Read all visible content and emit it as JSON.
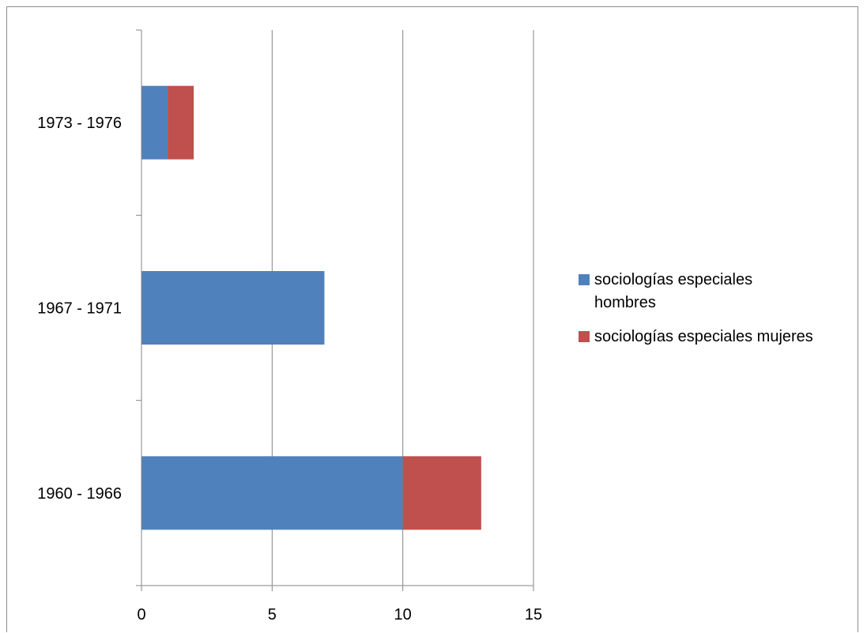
{
  "chart_data": {
    "type": "bar",
    "orientation": "horizontal",
    "stacked": true,
    "categories": [
      "1960 - 1966",
      "1967 - 1971",
      "1973 - 1976"
    ],
    "series": [
      {
        "name": "sociologías especiales hombres",
        "values": [
          10,
          7,
          1
        ],
        "color": "#4F81BD"
      },
      {
        "name": "sociologías especiales mujeres",
        "values": [
          3,
          0,
          1
        ],
        "color": "#C0504D"
      }
    ],
    "xlim": [
      0,
      15
    ],
    "xticks": [
      "0",
      "5",
      "10",
      "15"
    ],
    "grid": "vertical",
    "legend": "right"
  }
}
